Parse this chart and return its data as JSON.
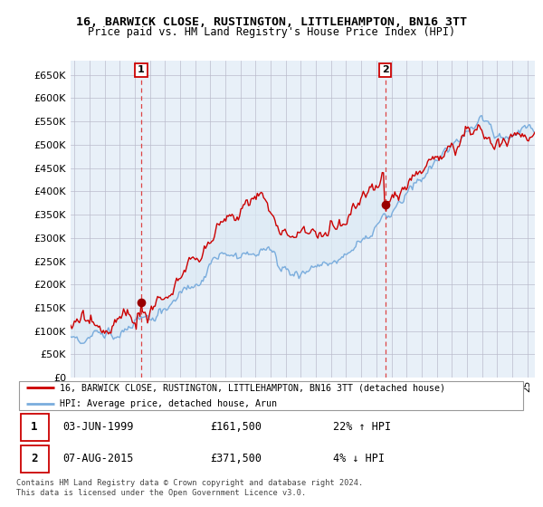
{
  "title": "16, BARWICK CLOSE, RUSTINGTON, LITTLEHAMPTON, BN16 3TT",
  "subtitle": "Price paid vs. HM Land Registry's House Price Index (HPI)",
  "ylabel_ticks": [
    "£0",
    "£50K",
    "£100K",
    "£150K",
    "£200K",
    "£250K",
    "£300K",
    "£350K",
    "£400K",
    "£450K",
    "£500K",
    "£550K",
    "£600K",
    "£650K"
  ],
  "ytick_values": [
    0,
    50000,
    100000,
    150000,
    200000,
    250000,
    300000,
    350000,
    400000,
    450000,
    500000,
    550000,
    600000,
    650000
  ],
  "ylim": [
    0,
    680000
  ],
  "xlim_start": 1994.75,
  "xlim_end": 2025.5,
  "sale1_year": 1999.42,
  "sale1_price": 161500,
  "sale2_year": 2015.58,
  "sale2_price": 371500,
  "legend_line1": "16, BARWICK CLOSE, RUSTINGTON, LITTLEHAMPTON, BN16 3TT (detached house)",
  "legend_line2": "HPI: Average price, detached house, Arun",
  "annotation1_date": "03-JUN-1999",
  "annotation1_price": "£161,500",
  "annotation1_hpi": "22% ↑ HPI",
  "annotation2_date": "07-AUG-2015",
  "annotation2_price": "£371,500",
  "annotation2_hpi": "4% ↓ HPI",
  "footer": "Contains HM Land Registry data © Crown copyright and database right 2024.\nThis data is licensed under the Open Government Licence v3.0.",
  "line_color_red": "#cc0000",
  "line_color_blue": "#7aaddd",
  "fill_color": "#dce9f5",
  "chart_bg_color": "#e8f0f8",
  "grid_color": "#bbbbcc",
  "vline_color": "#dd4444",
  "box_color": "#cc0000",
  "marker_color": "#990000"
}
